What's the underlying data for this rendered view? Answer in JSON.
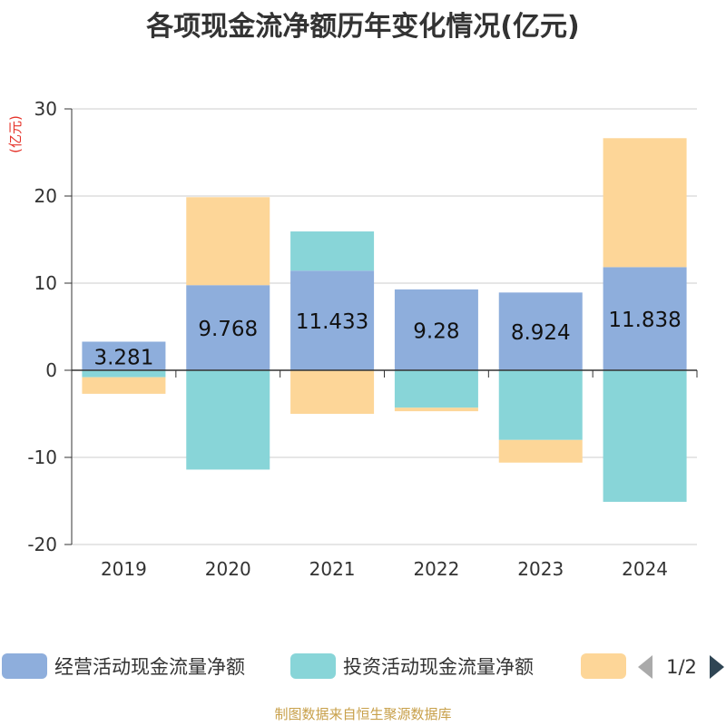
{
  "chart_data": {
    "type": "bar",
    "stacked": true,
    "title": "各项现金流净额历年变化情况(亿元)",
    "ylabel": "(亿元)",
    "categories": [
      "2019",
      "2020",
      "2021",
      "2022",
      "2023",
      "2024"
    ],
    "ylim": [
      -20,
      30
    ],
    "yticks": [
      30,
      20,
      10,
      0,
      -10,
      -20
    ],
    "grid": true,
    "series": [
      {
        "name": "经营活动现金流量净额",
        "color": "#8eaedc",
        "values": [
          3.281,
          9.768,
          11.433,
          9.28,
          8.924,
          11.838
        ],
        "labels": [
          "3.281",
          "9.768",
          "11.433",
          "9.28",
          "8.924",
          "11.838"
        ]
      },
      {
        "name": "投资活动现金流量净额",
        "color": "#88d5d8",
        "values": [
          -0.8,
          -11.4,
          4.5,
          -4.3,
          -8.0,
          -15.1
        ]
      },
      {
        "name": "",
        "color": "#fdd698",
        "values": [
          -1.9,
          10.1,
          -5.0,
          -0.4,
          -2.6,
          14.8
        ]
      }
    ],
    "legend": {
      "position": "bottom",
      "page": "1/2"
    }
  },
  "footer": "制图数据来自恒生聚源数据库"
}
